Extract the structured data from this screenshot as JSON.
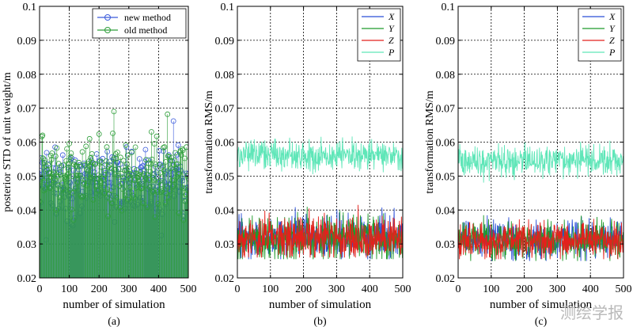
{
  "chart_data": [
    {
      "type": "line",
      "subtitle": "(a)",
      "xlabel": "number of simulation",
      "ylabel": "posterior STD of unit weight/m",
      "xlim": [
        0,
        500
      ],
      "ylim": [
        0.02,
        0.1
      ],
      "xticks": [
        0,
        100,
        200,
        300,
        400,
        500
      ],
      "yticks": [
        0.02,
        0.03,
        0.04,
        0.05,
        0.06,
        0.07,
        0.08,
        0.09,
        0.1
      ],
      "grid": true,
      "legend_position": "top-right",
      "series": [
        {
          "name": "new method",
          "color": "#3b5bdb",
          "style": "stem-circle",
          "seed": 11,
          "mean": 0.0485,
          "sd": 0.0048,
          "min": 0.0312,
          "max": 0.0695,
          "outliers": [
            [
              22,
              0.0312
            ],
            [
              83,
              0.0655
            ],
            [
              165,
              0.0342
            ],
            [
              245,
              0.0645
            ],
            [
              410,
              0.0325
            ],
            [
              450,
              0.0662
            ]
          ]
        },
        {
          "name": "old method",
          "color": "#2e9e3a",
          "style": "stem-circle",
          "seed": 23,
          "mean": 0.0505,
          "sd": 0.0052,
          "min": 0.037,
          "max": 0.0745,
          "outliers": [
            [
              83,
              0.0745
            ],
            [
              250,
              0.069
            ],
            [
              355,
              0.0688
            ],
            [
              430,
              0.0682
            ],
            [
              495,
              0.066
            ]
          ]
        }
      ]
    },
    {
      "type": "line",
      "subtitle": "(b)",
      "xlabel": "number of simulation",
      "ylabel": "transformation RMS/m",
      "xlim": [
        0,
        500
      ],
      "ylim": [
        0.02,
        0.1
      ],
      "xticks": [
        0,
        100,
        200,
        300,
        400,
        500
      ],
      "yticks": [
        0.02,
        0.03,
        0.04,
        0.05,
        0.06,
        0.07,
        0.08,
        0.09,
        0.1
      ],
      "grid": true,
      "legend_position": "top-right",
      "series": [
        {
          "name": "X",
          "color": "#2a4fd6",
          "seed": 31,
          "mean": 0.0318,
          "sd": 0.0032,
          "min": 0.0255,
          "max": 0.0455
        },
        {
          "name": "Y",
          "color": "#1f9a2a",
          "seed": 47,
          "mean": 0.0318,
          "sd": 0.0032,
          "min": 0.0255,
          "max": 0.0435
        },
        {
          "name": "Z",
          "color": "#e3211c",
          "seed": 59,
          "mean": 0.0318,
          "sd": 0.0032,
          "min": 0.026,
          "max": 0.0425
        },
        {
          "name": "P",
          "color": "#5fe6b8",
          "seed": 71,
          "mean": 0.0562,
          "sd": 0.0022,
          "min": 0.0485,
          "max": 0.0645
        }
      ]
    },
    {
      "type": "line",
      "subtitle": "(c)",
      "xlabel": "number of simulation",
      "ylabel": "transformation RMS/m",
      "xlim": [
        0,
        500
      ],
      "ylim": [
        0.02,
        0.1
      ],
      "xticks": [
        0,
        100,
        200,
        300,
        400,
        500
      ],
      "yticks": [
        0.02,
        0.03,
        0.04,
        0.05,
        0.06,
        0.07,
        0.08,
        0.09,
        0.1
      ],
      "grid": true,
      "legend_position": "top-right",
      "series": [
        {
          "name": "X",
          "color": "#2a4fd6",
          "seed": 83,
          "mean": 0.0312,
          "sd": 0.0028,
          "min": 0.025,
          "max": 0.0395
        },
        {
          "name": "Y",
          "color": "#1f9a2a",
          "seed": 97,
          "mean": 0.0312,
          "sd": 0.0028,
          "min": 0.025,
          "max": 0.0405
        },
        {
          "name": "Z",
          "color": "#e3211c",
          "seed": 101,
          "mean": 0.0312,
          "sd": 0.0028,
          "min": 0.0255,
          "max": 0.04
        },
        {
          "name": "P",
          "color": "#5fe6b8",
          "seed": 113,
          "mean": 0.0545,
          "sd": 0.0022,
          "min": 0.0475,
          "max": 0.0625
        }
      ]
    }
  ],
  "watermark": "测绘学报"
}
